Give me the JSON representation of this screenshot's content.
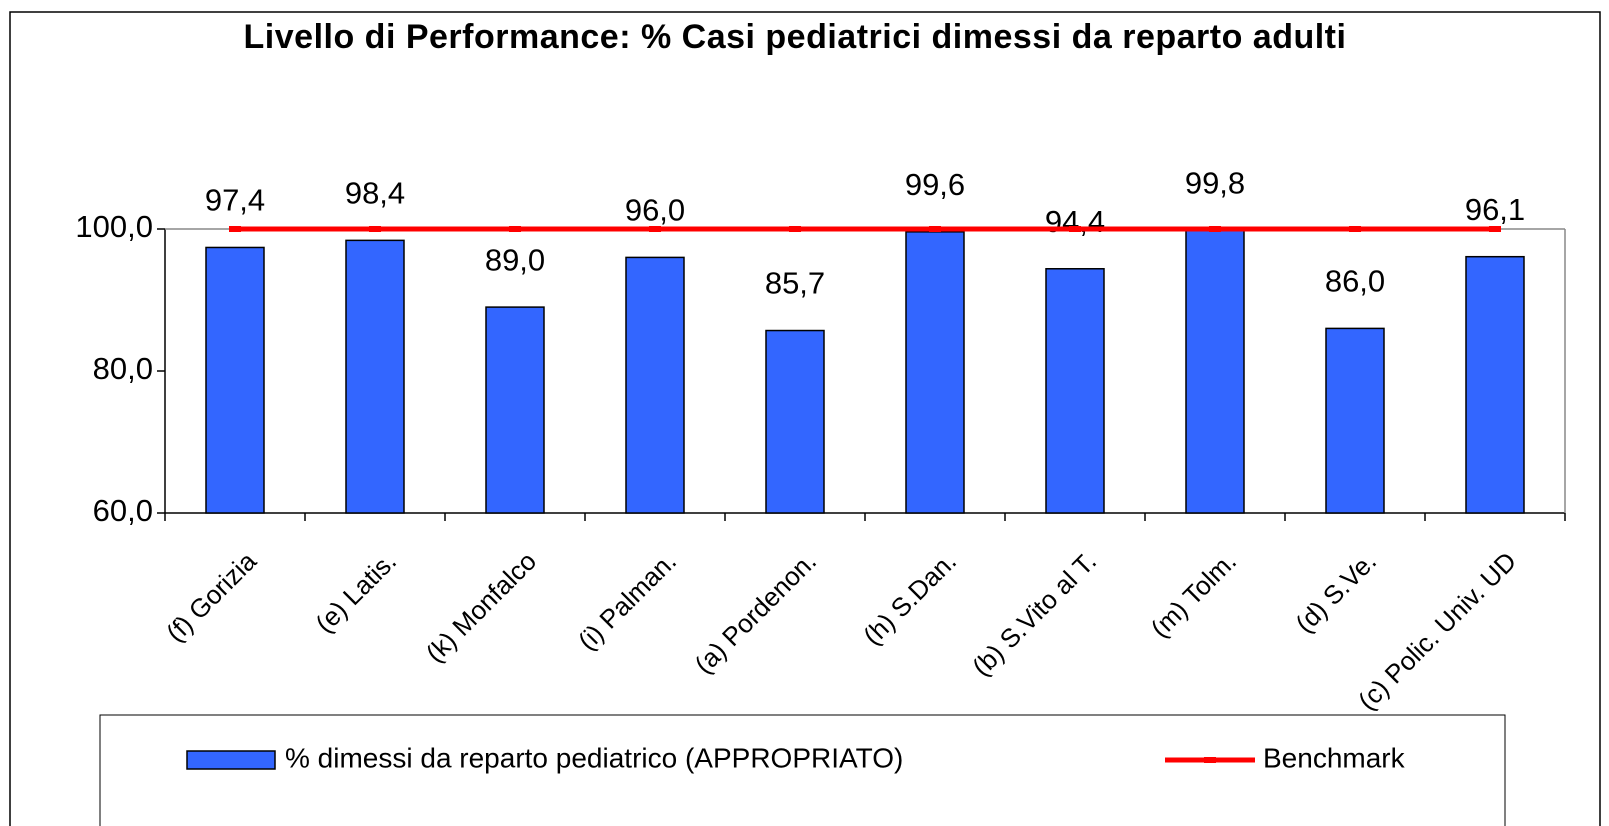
{
  "chart_data": {
    "type": "bar",
    "title": "Livello di Performance: % Casi pediatrici dimessi da reparto adulti",
    "categories": [
      "(f) Gorizia",
      "(e) Latis.",
      "(k) Monfalco",
      "(i) Palman.",
      "(a) Pordenon.",
      "(h) S.Dan.",
      "(b) S.Vito al T.",
      "(m) Tolm.",
      "(d) S.Ve.",
      "(c) Polic. Univ. UD"
    ],
    "series": [
      {
        "name": "% dimessi da reparto pediatrico (APPROPRIATO)",
        "color": "#3366ff",
        "type": "bar",
        "values": [
          97.4,
          98.4,
          89.0,
          96.0,
          85.7,
          99.6,
          94.4,
          99.8,
          86.0,
          96.1
        ],
        "value_labels": [
          "97,4",
          "98,4",
          "89,0",
          "96,0",
          "85,7",
          "99,6",
          "94,4",
          "99,8",
          "86,0",
          "96,1"
        ]
      },
      {
        "name": "Benchmark",
        "color": "#ff0000",
        "type": "line",
        "values": [
          100,
          100,
          100,
          100,
          100,
          100,
          100,
          100,
          100,
          100
        ]
      }
    ],
    "ylim": [
      60,
      100
    ],
    "yticks": [
      {
        "value": 60,
        "label": "60,0"
      },
      {
        "value": 80,
        "label": "80,0"
      },
      {
        "value": 100,
        "label": "100,0"
      }
    ]
  }
}
